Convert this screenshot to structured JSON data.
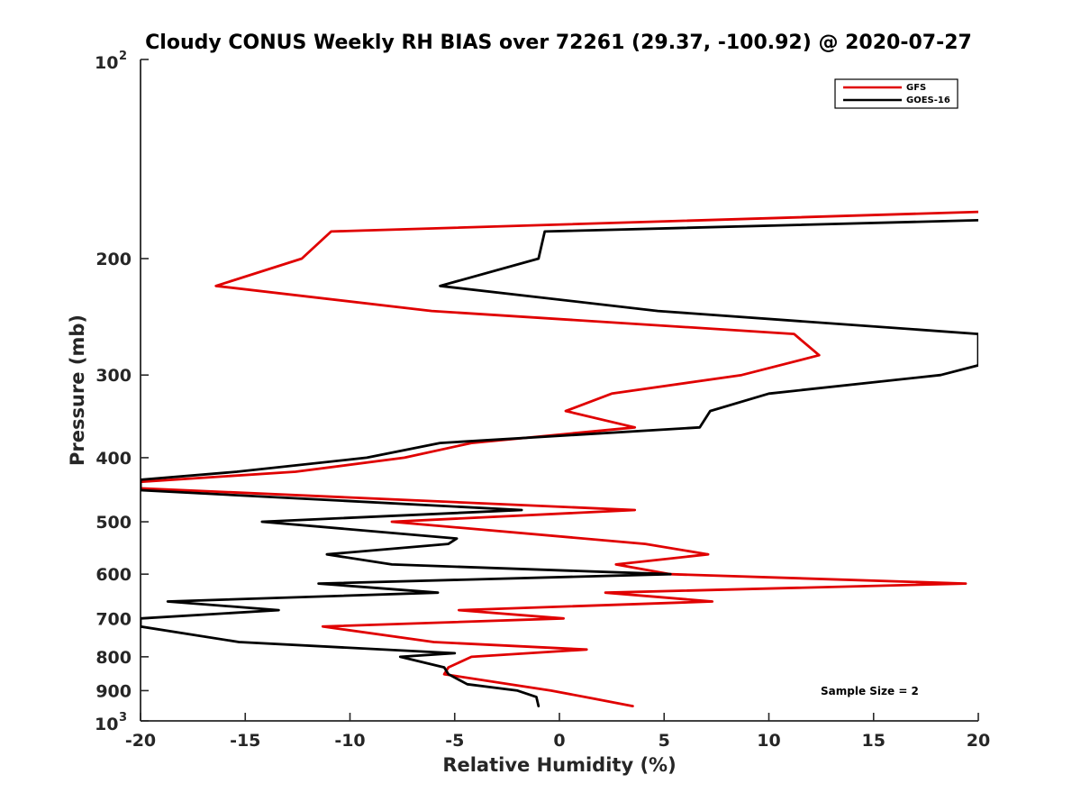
{
  "chart_data": {
    "type": "line",
    "title": "Cloudy CONUS Weekly RH BIAS over 72261 (29.37, -100.92) @ 2020-07-27",
    "xlabel": "Relative Humidity (%)",
    "ylabel": "Pressure (mb)",
    "xlim": [
      -20,
      20
    ],
    "ylim": [
      100,
      1000
    ],
    "yscale": "log",
    "y_reversed": true,
    "xticks": [
      -20,
      -15,
      -10,
      -5,
      0,
      5,
      10,
      15,
      20
    ],
    "xtick_labels": [
      "-20",
      "-15",
      "-10",
      "-5",
      "0",
      "5",
      "10",
      "15",
      "20"
    ],
    "yticks": [
      200,
      300,
      400,
      500,
      600,
      700,
      800,
      900
    ],
    "ytick_labels": [
      "200",
      "300",
      "400",
      "500",
      "600",
      "700",
      "800",
      "900"
    ],
    "y_top_label": {
      "base": "10",
      "exp": "2"
    },
    "y_bottom_label": {
      "base": "10",
      "exp": "3"
    },
    "grid": false,
    "legend_position": "top-right",
    "annotation": "Sample Size = 2",
    "series": [
      {
        "name": "GFS",
        "color": "#e00000",
        "points": [
          [
            20.0,
            170
          ],
          [
            -10.9,
            182
          ],
          [
            -12.3,
            200
          ],
          [
            -16.4,
            220
          ],
          [
            -6.1,
            240
          ],
          [
            11.2,
            260
          ],
          [
            12.4,
            280
          ],
          [
            8.7,
            300
          ],
          [
            2.5,
            320
          ],
          [
            0.3,
            340
          ],
          [
            3.6,
            360
          ],
          [
            -4.2,
            380
          ],
          [
            -7.4,
            400
          ],
          [
            -12.6,
            420
          ],
          [
            -20.0,
            435
          ],
          [
            -20.0,
            445
          ],
          [
            3.6,
            480
          ],
          [
            -8.0,
            500
          ],
          [
            4.1,
            540
          ],
          [
            7.1,
            560
          ],
          [
            2.7,
            580
          ],
          [
            5.3,
            600
          ],
          [
            19.4,
            620
          ],
          [
            2.2,
            640
          ],
          [
            7.3,
            660
          ],
          [
            -4.8,
            680
          ],
          [
            0.2,
            700
          ],
          [
            -11.3,
            720
          ],
          [
            -6.0,
            760
          ],
          [
            1.3,
            780
          ],
          [
            -4.2,
            800
          ],
          [
            -5.3,
            830
          ],
          [
            -5.5,
            850
          ],
          [
            -0.4,
            900
          ],
          [
            1.6,
            925
          ],
          [
            3.5,
            950
          ]
        ]
      },
      {
        "name": "GOES-16",
        "color": "#000000",
        "points": [
          [
            20.0,
            175
          ],
          [
            -0.7,
            182
          ],
          [
            -1.0,
            200
          ],
          [
            -5.7,
            220
          ],
          [
            4.7,
            240
          ],
          [
            20.0,
            260
          ],
          [
            20.0,
            290
          ],
          [
            18.2,
            300
          ],
          [
            10.0,
            320
          ],
          [
            7.2,
            340
          ],
          [
            6.7,
            360
          ],
          [
            -5.7,
            380
          ],
          [
            -9.2,
            400
          ],
          [
            -15.4,
            420
          ],
          [
            -20.0,
            432
          ],
          [
            -20.0,
            448
          ],
          [
            -1.8,
            480
          ],
          [
            -14.2,
            500
          ],
          [
            -4.9,
            530
          ],
          [
            -5.3,
            540
          ],
          [
            -11.1,
            560
          ],
          [
            -8.0,
            580
          ],
          [
            5.3,
            600
          ],
          [
            -11.5,
            620
          ],
          [
            -5.8,
            640
          ],
          [
            -18.7,
            660
          ],
          [
            -13.4,
            680
          ],
          [
            -20.0,
            700
          ],
          [
            -20.0,
            720
          ],
          [
            -15.3,
            760
          ],
          [
            -5.0,
            790
          ],
          [
            -7.6,
            800
          ],
          [
            -5.5,
            830
          ],
          [
            -5.3,
            850
          ],
          [
            -4.4,
            880
          ],
          [
            -2.0,
            900
          ],
          [
            -1.1,
            920
          ],
          [
            -1.0,
            950
          ]
        ]
      }
    ]
  }
}
